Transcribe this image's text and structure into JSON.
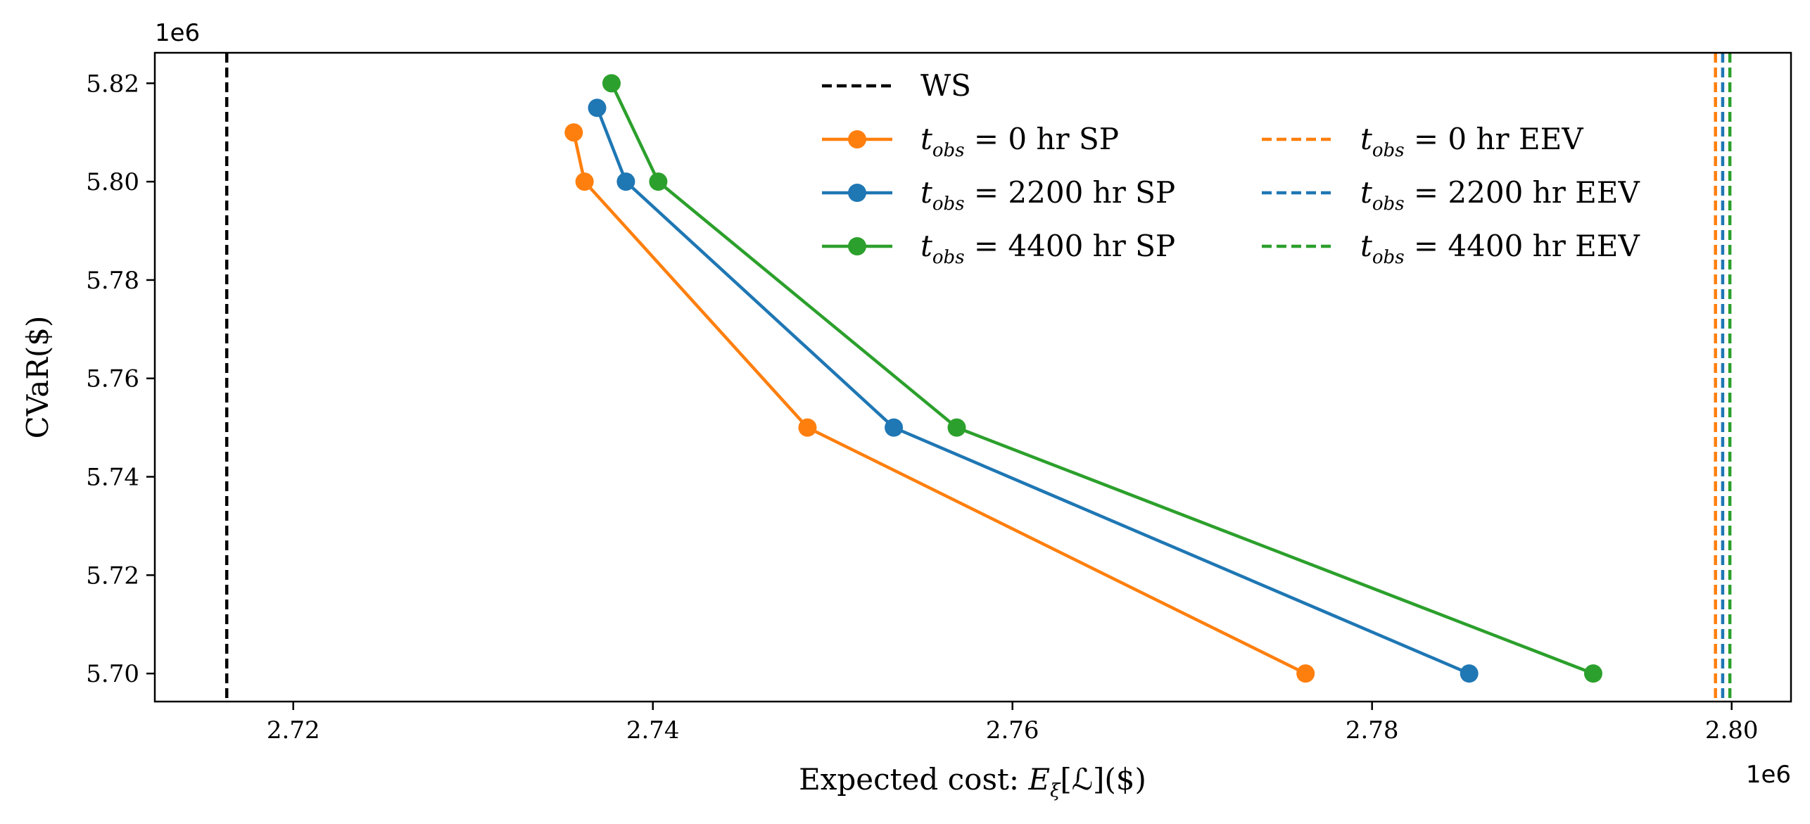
{
  "chart_data": {
    "type": "line",
    "xlabel_prefix": "Expected cost: ",
    "xlabel_math_E": "E",
    "xlabel_math_sub": "ξ",
    "xlabel_math_arg": "[ℒ]",
    "xlabel_suffix": "($)",
    "ylabel": "CVaR($)",
    "x_offset_label": "1e6",
    "y_offset_label": "1e6",
    "xlim": [
      2.7123,
      2.8033
    ],
    "ylim": [
      5.6943,
      5.8262
    ],
    "xticks": [
      2.72,
      2.74,
      2.76,
      2.78,
      2.8
    ],
    "xtick_labels": [
      "2.72",
      "2.74",
      "2.76",
      "2.78",
      "2.80"
    ],
    "yticks": [
      5.7,
      5.72,
      5.74,
      5.76,
      5.78,
      5.8,
      5.82
    ],
    "ytick_labels": [
      "5.70",
      "5.72",
      "5.74",
      "5.76",
      "5.78",
      "5.80",
      "5.82"
    ],
    "reference_lines": [
      {
        "name": "WS",
        "x": 2.7163,
        "color": "#000000"
      },
      {
        "name": "t_obs = 0 hr EEV",
        "x": 2.7991,
        "color": "#ff7f0e"
      },
      {
        "name": "t_obs = 2200 hr EEV",
        "x": 2.7995,
        "color": "#1f77b4"
      },
      {
        "name": "t_obs = 4400 hr EEV",
        "x": 2.7999,
        "color": "#2ca02c"
      }
    ],
    "series": [
      {
        "name": "t_obs = 0 hr SP",
        "color": "#ff7f0e",
        "x": [
          2.7356,
          2.7362,
          2.7486,
          2.7763
        ],
        "y": [
          5.81,
          5.8,
          5.75,
          5.7
        ]
      },
      {
        "name": "t_obs = 2200 hr SP",
        "color": "#1f77b4",
        "x": [
          2.7369,
          2.7385,
          2.7534,
          2.7854
        ],
        "y": [
          5.815,
          5.8,
          5.75,
          5.7
        ]
      },
      {
        "name": "t_obs = 4400 hr SP",
        "color": "#2ca02c",
        "x": [
          2.7377,
          2.7403,
          2.7569,
          2.7923
        ],
        "y": [
          5.82,
          5.8,
          5.75,
          5.7
        ]
      }
    ],
    "legend": {
      "placement": "upper-center",
      "ws_label": "WS",
      "entries": [
        {
          "var": "t",
          "sub": "obs",
          "rest": " = 0 hr SP",
          "color": "#ff7f0e",
          "style": "marker-line"
        },
        {
          "var": "t",
          "sub": "obs",
          "rest": " = 2200 hr SP",
          "color": "#1f77b4",
          "style": "marker-line"
        },
        {
          "var": "t",
          "sub": "obs",
          "rest": " = 4400 hr SP",
          "color": "#2ca02c",
          "style": "marker-line"
        },
        {
          "var": "t",
          "sub": "obs",
          "rest": " = 0 hr EEV",
          "color": "#ff7f0e",
          "style": "dashed"
        },
        {
          "var": "t",
          "sub": "obs",
          "rest": " = 2200 hr EEV",
          "color": "#1f77b4",
          "style": "dashed"
        },
        {
          "var": "t",
          "sub": "obs",
          "rest": " = 4400 hr EEV",
          "color": "#2ca02c",
          "style": "dashed"
        }
      ]
    }
  }
}
